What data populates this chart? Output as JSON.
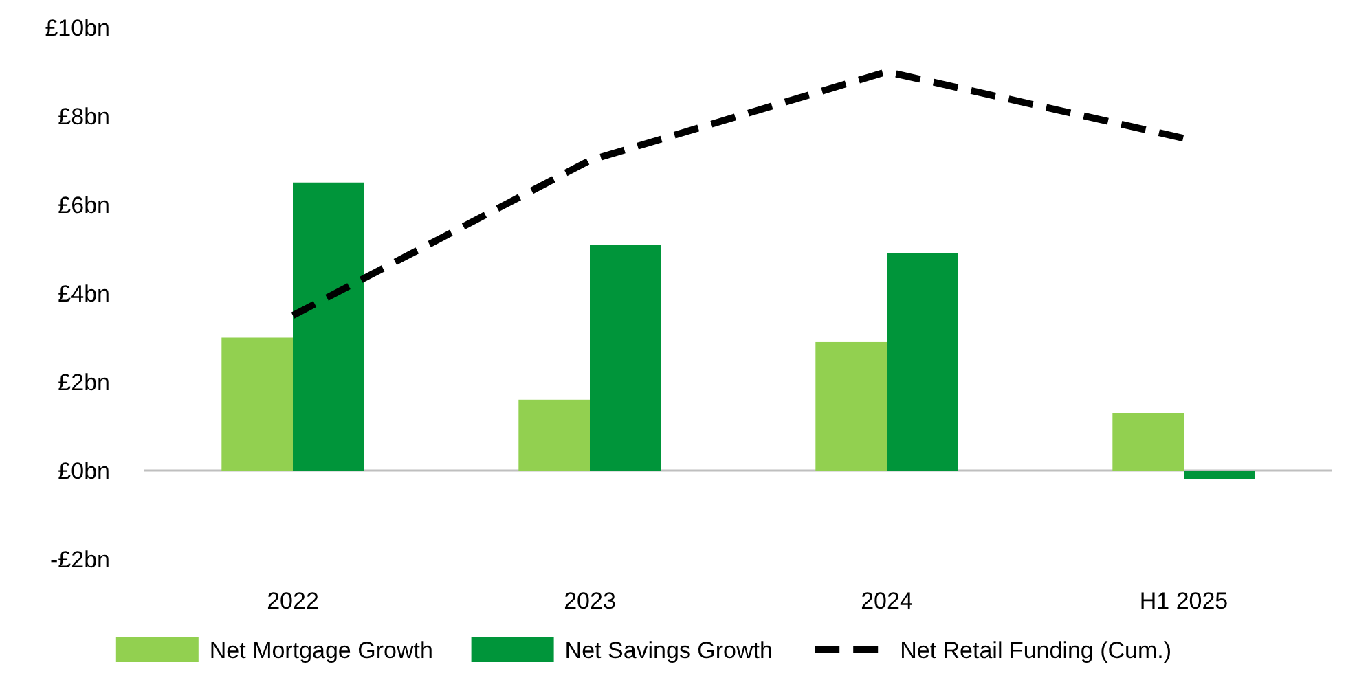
{
  "chart_data": {
    "type": "bar",
    "categories": [
      "2022",
      "2023",
      "2024",
      "H1 2025"
    ],
    "ylim": [
      -2,
      10
    ],
    "yticks": [
      {
        "value": -2,
        "label": "-£2bn"
      },
      {
        "value": 0,
        "label": "£0bn"
      },
      {
        "value": 2,
        "label": "£2bn"
      },
      {
        "value": 4,
        "label": "£4bn"
      },
      {
        "value": 6,
        "label": "£6bn"
      },
      {
        "value": 8,
        "label": "£8bn"
      },
      {
        "value": 10,
        "label": "£10bn"
      }
    ],
    "legend": "bottom",
    "series": [
      {
        "name": "Net Mortgage Growth",
        "color": "#92d050",
        "values": [
          3.0,
          1.6,
          2.9,
          1.3
        ]
      },
      {
        "name": "Net Savings Growth",
        "color": "#00953a",
        "values": [
          6.5,
          5.1,
          4.9,
          -0.2
        ]
      },
      {
        "name": "Net Retail Funding (Cum.)",
        "type": "line",
        "color": "#000000",
        "line_style": "dashed",
        "values": [
          3.5,
          7.0,
          9.0,
          7.5
        ]
      }
    ]
  }
}
